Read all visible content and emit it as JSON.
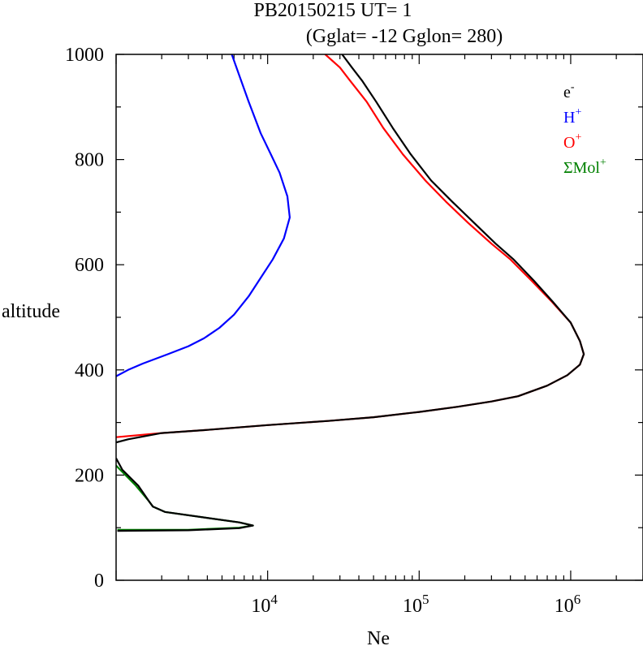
{
  "chart_data": {
    "type": "line",
    "title_line1": "PB20150215   UT=  1",
    "title_line2": "(Gglat= -12   Gglon=  280)",
    "xlabel": "Ne",
    "ylabel": "altitude",
    "xscale": "log",
    "xlim": [
      1000,
      3000000
    ],
    "ylim": [
      0,
      1000
    ],
    "y_ticks": [
      0,
      200,
      400,
      600,
      800,
      1000
    ],
    "y_tick_labels": [
      "0",
      "200",
      "400",
      "600",
      "800",
      "1000"
    ],
    "x_ticks": [
      10000,
      100000,
      1000000
    ],
    "x_tick_labels": [
      {
        "base": "10",
        "exp": "4"
      },
      {
        "base": "10",
        "exp": "5"
      },
      {
        "base": "10",
        "exp": "6"
      }
    ],
    "legend": [
      {
        "base": "e",
        "sup": "-",
        "color": "#000000"
      },
      {
        "base": "H",
        "sup": "+",
        "color": "#0000ff"
      },
      {
        "base": "O",
        "sup": "+",
        "color": "#ff0000"
      },
      {
        "base": "ΣMol",
        "sup": "+",
        "color": "#008000"
      }
    ],
    "series": [
      {
        "name": "ΣMol+",
        "color": "#008000",
        "points": [
          [
            1020,
            96
          ],
          [
            3000,
            96
          ],
          [
            6500,
            100
          ],
          [
            8000,
            104
          ],
          [
            6500,
            110
          ],
          [
            2100,
            130
          ],
          [
            1750,
            140
          ],
          [
            1650,
            150
          ],
          [
            1350,
            180
          ],
          [
            1000,
            218
          ]
        ]
      },
      {
        "name": "H+",
        "color": "#0000ff",
        "points": [
          [
            1000,
            388
          ],
          [
            1200,
            400
          ],
          [
            1500,
            412
          ],
          [
            2200,
            430
          ],
          [
            3000,
            445
          ],
          [
            3800,
            460
          ],
          [
            4800,
            480
          ],
          [
            6000,
            505
          ],
          [
            7500,
            540
          ],
          [
            9000,
            575
          ],
          [
            10800,
            610
          ],
          [
            12800,
            650
          ],
          [
            14000,
            690
          ],
          [
            13500,
            730
          ],
          [
            12000,
            775
          ],
          [
            10500,
            810
          ],
          [
            9000,
            850
          ],
          [
            7500,
            910
          ],
          [
            6500,
            960
          ],
          [
            5800,
            1000
          ]
        ]
      },
      {
        "name": "O+",
        "color": "#ff0000",
        "points": [
          [
            1000,
            272
          ],
          [
            2000,
            280
          ],
          [
            4000,
            286
          ],
          [
            10000,
            295
          ],
          [
            25000,
            303
          ],
          [
            50000,
            310
          ],
          [
            100000,
            320
          ],
          [
            180000,
            330
          ],
          [
            300000,
            340
          ],
          [
            450000,
            350
          ],
          [
            700000,
            370
          ],
          [
            950000,
            390
          ],
          [
            1150000,
            410
          ],
          [
            1220000,
            430
          ],
          [
            1150000,
            455
          ],
          [
            1000000,
            490
          ],
          [
            750000,
            530
          ],
          [
            550000,
            570
          ],
          [
            400000,
            610
          ],
          [
            300000,
            640
          ],
          [
            210000,
            680
          ],
          [
            150000,
            720
          ],
          [
            110000,
            760
          ],
          [
            78000,
            810
          ],
          [
            58000,
            860
          ],
          [
            45000,
            910
          ],
          [
            35000,
            950
          ],
          [
            30000,
            975
          ],
          [
            24000,
            1000
          ]
        ]
      },
      {
        "name": "e-",
        "color": "#000000",
        "points": [
          [
            [
              1000,
              262
            ],
            [
              1200,
              268
            ],
            [
              2000,
              280
            ],
            [
              4000,
              286
            ],
            [
              10000,
              295
            ],
            [
              25000,
              303
            ],
            [
              50000,
              310
            ],
            [
              100000,
              320
            ],
            [
              180000,
              330
            ],
            [
              300000,
              340
            ],
            [
              450000,
              350
            ],
            [
              700000,
              370
            ],
            [
              950000,
              390
            ],
            [
              1150000,
              410
            ],
            [
              1220000,
              430
            ],
            [
              1150000,
              455
            ],
            [
              1000000,
              490
            ],
            [
              760000,
              530
            ],
            [
              570000,
              570
            ],
            [
              420000,
              610
            ],
            [
              320000,
              640
            ],
            [
              230000,
              680
            ],
            [
              165000,
              720
            ],
            [
              120000,
              760
            ],
            [
              88000,
              810
            ],
            [
              67000,
              860
            ],
            [
              52000,
              910
            ],
            [
              42000,
              950
            ],
            [
              36000,
              975
            ],
            [
              31000,
              1000
            ]
          ],
          [
            [
              1020,
              94
            ],
            [
              3000,
              95
            ],
            [
              6500,
              99
            ],
            [
              8000,
              104
            ],
            [
              6500,
              110
            ],
            [
              2100,
              130
            ],
            [
              1750,
              140
            ],
            [
              1650,
              150
            ],
            [
              1400,
              180
            ],
            [
              1100,
              210
            ],
            [
              1000,
              232
            ]
          ]
        ]
      }
    ]
  }
}
